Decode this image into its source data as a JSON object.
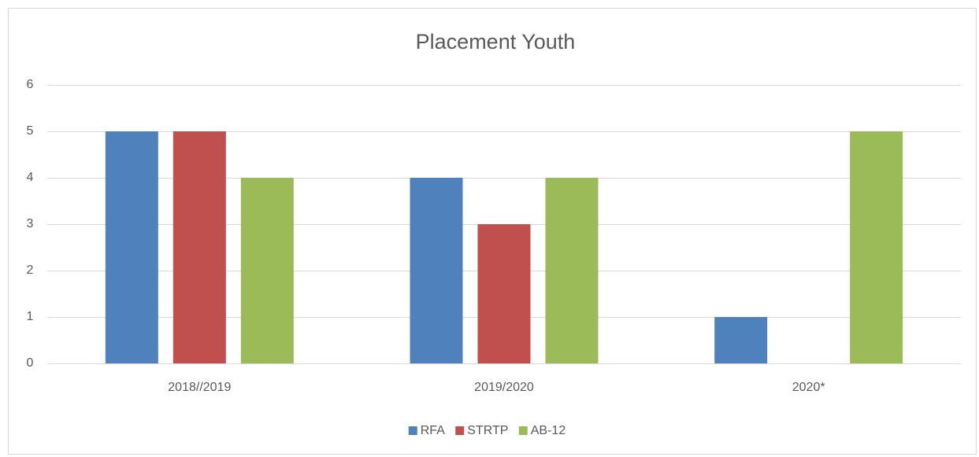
{
  "chart_data": {
    "type": "bar",
    "title": "Placement Youth",
    "categories": [
      "2018//2019",
      "2019/2020",
      "2020*"
    ],
    "series": [
      {
        "name": "RFA",
        "color": "#4f81bd",
        "values": [
          5,
          4,
          1
        ]
      },
      {
        "name": "STRTP",
        "color": "#c0504d",
        "values": [
          5,
          3,
          0
        ]
      },
      {
        "name": "AB-12",
        "color": "#9bbb59",
        "values": [
          4,
          4,
          5
        ]
      }
    ],
    "ylim": [
      0,
      6
    ],
    "yticks": [
      0,
      1,
      2,
      3,
      4,
      5,
      6
    ],
    "grid": true,
    "legend": "bottom"
  }
}
